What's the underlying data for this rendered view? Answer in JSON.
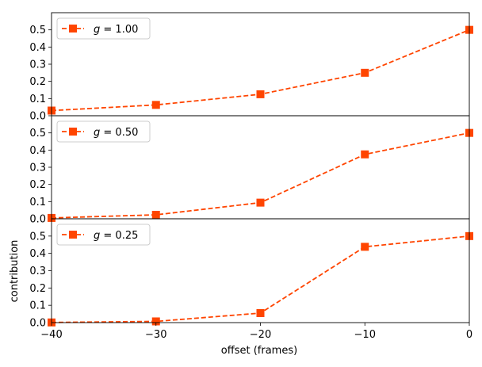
{
  "chart_data": {
    "type": "line",
    "layout": "stacked-subplots-shared-x",
    "xlabel": "offset (frames)",
    "ylabel": "contribution",
    "x_ticks": [
      "−40",
      "−30",
      "−20",
      "−10",
      "0"
    ],
    "xlim": [
      -40,
      0
    ],
    "ylim": [
      0,
      0.6
    ],
    "y_ticks": [
      "0.0",
      "0.1",
      "0.2",
      "0.3",
      "0.4",
      "0.5"
    ],
    "line_color": "#ff4500",
    "line_style": "dashed",
    "marker": "square",
    "legend_location": "upper-left",
    "panels": [
      {
        "legend": "g = 1.00",
        "legend_var": "g",
        "legend_value": "= 1.00",
        "x": [
          -40,
          -30,
          -20,
          -10,
          0
        ],
        "y": [
          0.03,
          0.063,
          0.125,
          0.25,
          0.5
        ]
      },
      {
        "legend": "g = 0.50",
        "legend_var": "g",
        "legend_value": "= 0.50",
        "x": [
          -40,
          -30,
          -20,
          -10,
          0
        ],
        "y": [
          0.005,
          0.023,
          0.094,
          0.375,
          0.5
        ]
      },
      {
        "legend": "g = 0.25",
        "legend_var": "g",
        "legend_value": "= 0.25",
        "x": [
          -40,
          -30,
          -20,
          -10,
          0
        ],
        "y": [
          0.001,
          0.007,
          0.055,
          0.438,
          0.5
        ]
      }
    ]
  }
}
